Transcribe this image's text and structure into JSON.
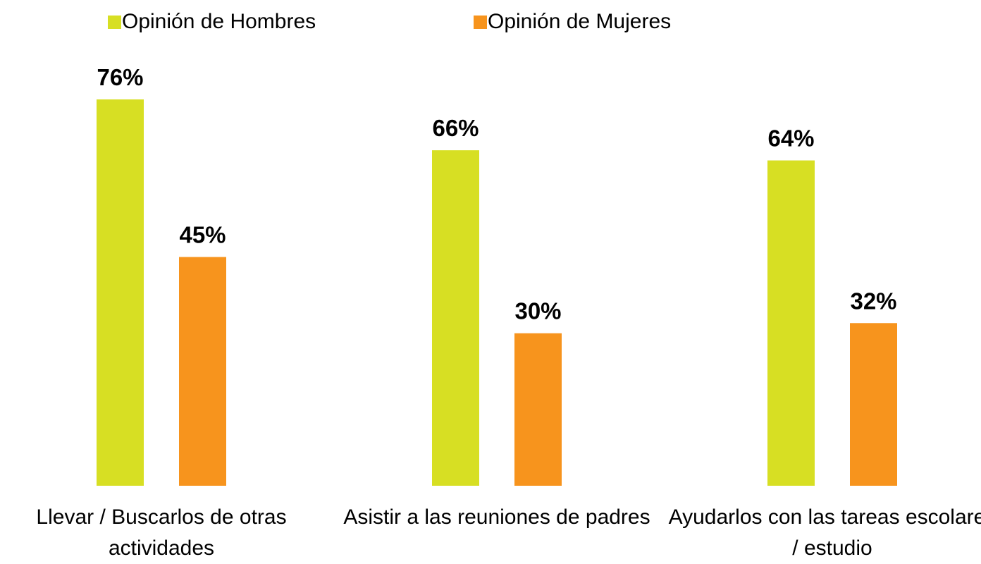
{
  "chart_data": {
    "type": "bar",
    "categories": [
      "Llevar / Buscarlos de otras actividades",
      "Asistir a las reuniones de padres",
      "Ayudarlos con las tareas escolares / estudio"
    ],
    "series": [
      {
        "name": "Opinión de Hombres",
        "color": "#d7df23",
        "values": [
          76,
          66,
          64
        ],
        "value_labels": [
          "76%",
          "66%",
          "64%"
        ]
      },
      {
        "name": "Opinión de Mujeres",
        "color": "#f7941d",
        "values": [
          45,
          30,
          32
        ],
        "value_labels": [
          "45%",
          "30%",
          "32%"
        ]
      }
    ],
    "legend": "top"
  }
}
